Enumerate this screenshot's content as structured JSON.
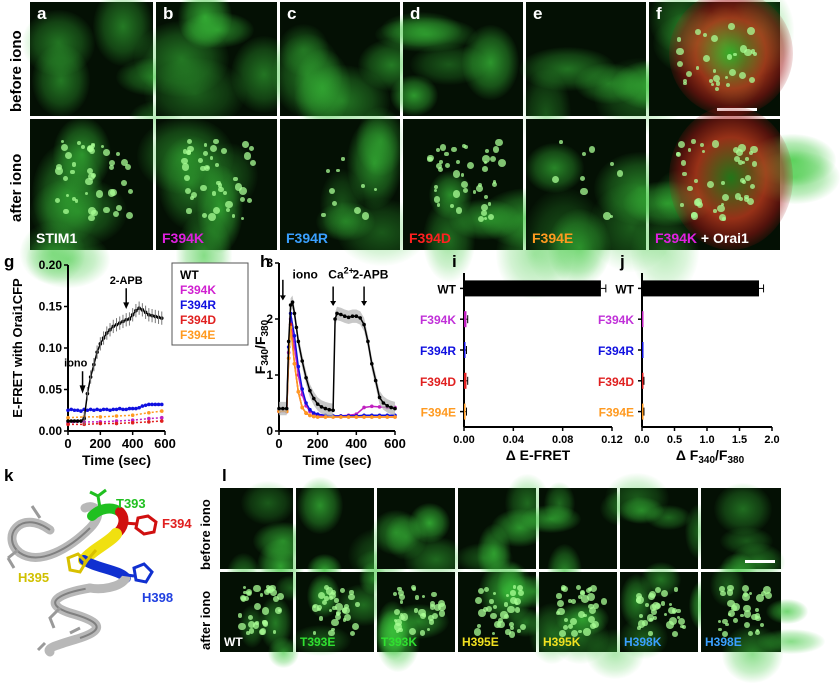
{
  "top_row_labels": {
    "before": "before iono",
    "after": "after iono"
  },
  "top_panels": [
    {
      "letter": "a",
      "label": "STIM1",
      "label_color": "#ffffff"
    },
    {
      "letter": "b",
      "label": "F394K",
      "label_color": "#e020e0"
    },
    {
      "letter": "c",
      "label": "F394R",
      "label_color": "#3aa0ff"
    },
    {
      "letter": "d",
      "label": "F394D",
      "label_color": "#ff2020"
    },
    {
      "letter": "e",
      "label": "F394E",
      "label_color": "#ff9a20"
    },
    {
      "letter": "f",
      "label": "F394K",
      "label_color": "#e020e0",
      "label_suffix": " + Orai1"
    }
  ],
  "chart_data": [
    {
      "panel": "g",
      "type": "line",
      "ylabel": "E-FRET with Orai1CFP",
      "xlabel": "Time (sec)",
      "xlim": [
        0,
        600
      ],
      "ylim": [
        0,
        0.2
      ],
      "xticks": [
        "0",
        "200",
        "400",
        "600"
      ],
      "yticks": [
        "0.00",
        "0.05",
        "0.10",
        "0.15",
        "0.20"
      ],
      "annotations": [
        "iono",
        "2-APB"
      ],
      "legend": [
        "WT",
        "F394K",
        "F394R",
        "F394D",
        "F394E"
      ],
      "series": [
        {
          "name": "WT",
          "color": "#000000",
          "x": [
            0,
            20,
            40,
            60,
            80,
            100,
            120,
            140,
            160,
            180,
            200,
            220,
            240,
            260,
            280,
            300,
            320,
            340,
            360,
            380,
            400,
            420,
            440,
            460,
            480,
            500,
            520,
            540,
            560,
            580
          ],
          "y": [
            0.012,
            0.012,
            0.012,
            0.012,
            0.012,
            0.015,
            0.045,
            0.065,
            0.08,
            0.095,
            0.105,
            0.112,
            0.118,
            0.122,
            0.126,
            0.128,
            0.13,
            0.132,
            0.134,
            0.135,
            0.14,
            0.145,
            0.148,
            0.146,
            0.143,
            0.14,
            0.139,
            0.138,
            0.137,
            0.136
          ]
        },
        {
          "name": "F394K",
          "color": "#c020c0",
          "x": [
            0,
            100,
            200,
            300,
            400,
            500,
            580
          ],
          "y": [
            0.01,
            0.011,
            0.011,
            0.012,
            0.013,
            0.015,
            0.016
          ]
        },
        {
          "name": "F394R",
          "color": "#1010e0",
          "x": [
            0,
            20,
            40,
            60,
            80,
            100,
            120,
            140,
            160,
            180,
            200,
            220,
            240,
            260,
            280,
            300,
            320,
            340,
            360,
            380,
            400,
            420,
            440,
            460,
            480,
            500,
            520,
            540,
            560,
            580
          ],
          "y": [
            0.025,
            0.026,
            0.025,
            0.025,
            0.024,
            0.026,
            0.025,
            0.026,
            0.025,
            0.026,
            0.025,
            0.026,
            0.026,
            0.025,
            0.026,
            0.026,
            0.027,
            0.026,
            0.026,
            0.027,
            0.027,
            0.027,
            0.028,
            0.03,
            0.031,
            0.032,
            0.032,
            0.032,
            0.032,
            0.032
          ]
        },
        {
          "name": "F394D",
          "color": "#e02020",
          "x": [
            0,
            100,
            200,
            300,
            400,
            500,
            580
          ],
          "y": [
            0.008,
            0.008,
            0.009,
            0.009,
            0.01,
            0.011,
            0.012
          ]
        },
        {
          "name": "F394E",
          "color": "#ff9a20",
          "x": [
            0,
            100,
            200,
            300,
            400,
            500,
            580
          ],
          "y": [
            0.016,
            0.017,
            0.017,
            0.018,
            0.019,
            0.022,
            0.024
          ]
        }
      ]
    },
    {
      "panel": "h",
      "type": "line",
      "ylabel": "F340/F380",
      "xlabel": "Time (sec)",
      "xlim": [
        0,
        600
      ],
      "ylim": [
        0,
        3
      ],
      "xticks": [
        "0",
        "200",
        "400",
        "600"
      ],
      "yticks": [
        "0",
        "1",
        "2",
        "3"
      ],
      "annotations": [
        "iono",
        "Ca2+",
        "2-APB"
      ],
      "series": [
        {
          "name": "WT",
          "color": "#000000",
          "x": [
            0,
            20,
            40,
            50,
            60,
            70,
            80,
            90,
            100,
            120,
            140,
            160,
            180,
            200,
            220,
            240,
            260,
            280,
            290,
            300,
            320,
            340,
            360,
            380,
            400,
            420,
            440,
            460,
            480,
            500,
            520,
            540,
            560,
            580,
            600
          ],
          "y": [
            0.4,
            0.4,
            0.4,
            1.6,
            2.25,
            2.3,
            2.1,
            1.85,
            1.6,
            1.25,
            0.95,
            0.72,
            0.58,
            0.48,
            0.43,
            0.4,
            0.38,
            0.37,
            2.0,
            2.1,
            2.08,
            2.05,
            2.03,
            2.05,
            2.05,
            2.02,
            1.9,
            1.6,
            1.2,
            0.9,
            0.6,
            0.5,
            0.45,
            0.42,
            0.4
          ]
        },
        {
          "name": "F394K",
          "color": "#c020c0",
          "x": [
            0,
            40,
            50,
            60,
            80,
            100,
            120,
            140,
            160,
            180,
            200,
            240,
            280,
            320,
            360,
            400,
            440,
            480,
            520,
            560,
            600
          ],
          "y": [
            0.35,
            0.35,
            1.4,
            2.0,
            1.5,
            1.0,
            0.65,
            0.45,
            0.35,
            0.3,
            0.28,
            0.27,
            0.26,
            0.27,
            0.28,
            0.3,
            0.42,
            0.44,
            0.43,
            0.42,
            0.42
          ]
        },
        {
          "name": "F394R",
          "color": "#1010e0",
          "x": [
            0,
            40,
            50,
            60,
            80,
            100,
            120,
            140,
            160,
            180,
            200,
            240,
            280,
            320,
            360,
            400,
            440,
            480,
            520,
            560,
            600
          ],
          "y": [
            0.35,
            0.35,
            1.5,
            2.1,
            1.7,
            1.15,
            0.75,
            0.5,
            0.38,
            0.32,
            0.3,
            0.28,
            0.27,
            0.27,
            0.27,
            0.27,
            0.28,
            0.28,
            0.28,
            0.28,
            0.28
          ]
        },
        {
          "name": "F394D",
          "color": "#e02020",
          "x": [
            0,
            40,
            50,
            60,
            80,
            100,
            120,
            140,
            160,
            180,
            200,
            240,
            280,
            320,
            360,
            400,
            440,
            480,
            520,
            560,
            600
          ],
          "y": [
            0.35,
            0.35,
            1.3,
            1.9,
            1.2,
            0.7,
            0.42,
            0.32,
            0.28,
            0.26,
            0.25,
            0.25,
            0.25,
            0.25,
            0.25,
            0.25,
            0.25,
            0.25,
            0.25,
            0.25,
            0.25
          ]
        },
        {
          "name": "F394E",
          "color": "#ff9a20",
          "x": [
            0,
            40,
            50,
            60,
            80,
            100,
            120,
            140,
            160,
            180,
            200,
            240,
            280,
            320,
            360,
            400,
            440,
            480,
            520,
            560,
            600
          ],
          "y": [
            0.35,
            0.35,
            1.3,
            1.85,
            1.2,
            0.7,
            0.42,
            0.32,
            0.28,
            0.26,
            0.25,
            0.25,
            0.25,
            0.25,
            0.25,
            0.25,
            0.25,
            0.25,
            0.25,
            0.25,
            0.25
          ]
        }
      ]
    },
    {
      "panel": "i",
      "type": "bar",
      "orientation": "horizontal",
      "xlabel": "Δ E-FRET",
      "xlim": [
        0,
        0.12
      ],
      "xticks": [
        "0.00",
        "0.04",
        "0.08",
        "0.12"
      ],
      "categories": [
        "WT",
        "F394K",
        "F394R",
        "F394D",
        "F394E"
      ],
      "category_colors": [
        "#000000",
        "#c020c0",
        "#1010e0",
        "#e02020",
        "#ff9a20"
      ],
      "values": [
        0.111,
        0.002,
        0.001,
        0.002,
        0.001
      ],
      "errors": [
        0.004,
        0.001,
        0.001,
        0.001,
        0.001
      ]
    },
    {
      "panel": "j",
      "type": "bar",
      "orientation": "horizontal",
      "xlabel": "Δ F340/F380",
      "xlim": [
        0,
        2.0
      ],
      "xticks": [
        "0.0",
        "0.5",
        "1.0",
        "1.5",
        "2.0"
      ],
      "categories": [
        "WT",
        "F394K",
        "F394R",
        "F394D",
        "F394E"
      ],
      "category_colors": [
        "#000000",
        "#c020c0",
        "#1010e0",
        "#e02020",
        "#ff9a20"
      ],
      "values": [
        1.8,
        0.0,
        0.0,
        0.02,
        0.02
      ],
      "errors": [
        0.07,
        0.0,
        0.0,
        0.01,
        0.01
      ]
    }
  ],
  "panel_letters": {
    "g": "g",
    "h": "h",
    "i": "i",
    "j": "j",
    "k": "k",
    "l": "l"
  },
  "structure_labels": [
    {
      "text": "T393",
      "color": "#20c020"
    },
    {
      "text": "F394",
      "color": "#e02020"
    },
    {
      "text": "H395",
      "color": "#d0c000"
    },
    {
      "text": "H398",
      "color": "#2040e0"
    }
  ],
  "bottom_row_labels": {
    "before": "before iono",
    "after": "after iono"
  },
  "bottom_panels": [
    {
      "label": "WT",
      "color": "#ffffff"
    },
    {
      "label": "T393E",
      "color": "#30e030"
    },
    {
      "label": "T393K",
      "color": "#30e030"
    },
    {
      "label": "H395E",
      "color": "#f0e020"
    },
    {
      "label": "H395K",
      "color": "#f0e020"
    },
    {
      "label": "H398K",
      "color": "#3aa0ff"
    },
    {
      "label": "H398E",
      "color": "#3aa0ff"
    }
  ]
}
